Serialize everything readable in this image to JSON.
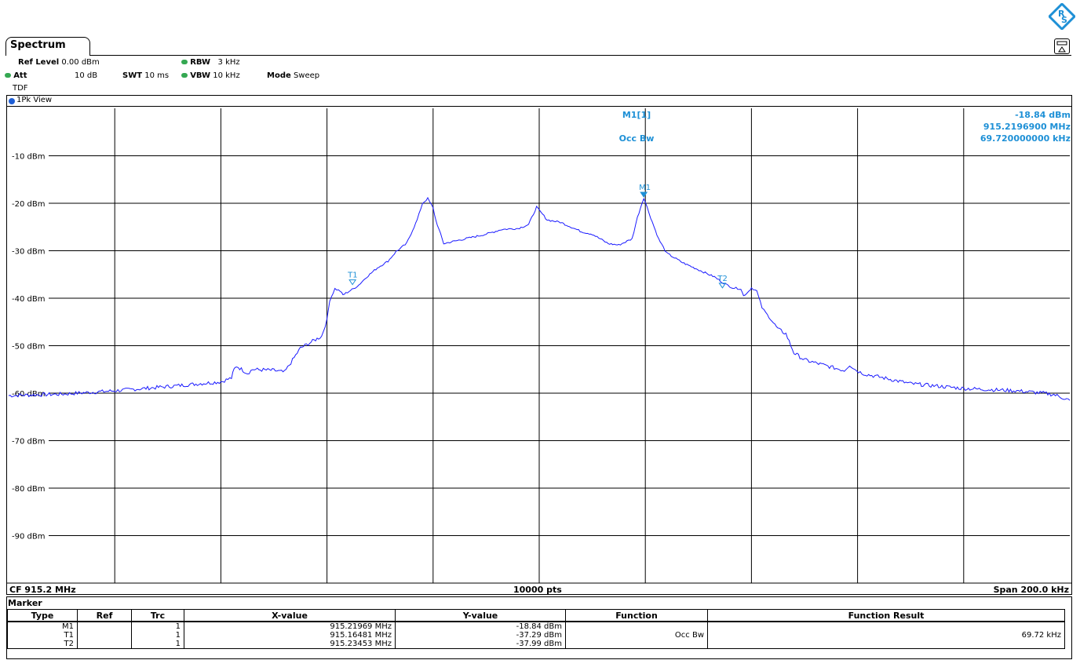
{
  "window": {
    "tab_title": "Spectrum"
  },
  "settings": {
    "ref_level_label": "Ref Level",
    "ref_level_value": "0.00 dBm",
    "att_label": "Att",
    "att_value": "10 dB",
    "swt_label": "SWT",
    "swt_value": "10 ms",
    "rbw_label": "RBW",
    "rbw_value": "3 kHz",
    "vbw_label": "VBW",
    "vbw_value": "10 kHz",
    "mode_label": "Mode",
    "mode_value": "Sweep",
    "tdf": "TDF"
  },
  "view": {
    "title": "1Pk View",
    "marker_readout": {
      "label": "M1[1]",
      "level": "-18.84 dBm",
      "frequency": "915.2196900 MHz",
      "occbw_label": "Occ Bw",
      "occbw_value": "69.720000000 kHz"
    },
    "footer": {
      "cf": "CF 915.2 MHz",
      "pts": "10000 pts",
      "span": "Span 200.0 kHz"
    }
  },
  "colors": {
    "trace": "#1a1aff",
    "marker": "#1e90d6",
    "grid": "#000000",
    "accent": "#35a852"
  },
  "chart_data": {
    "type": "line",
    "x_unit": "MHz",
    "xlim": [
      915.1,
      915.3
    ],
    "ylim": [
      -100,
      0
    ],
    "ytick_labels": [
      "-10 dBm",
      "-20 dBm",
      "-30 dBm",
      "-40 dBm",
      "-50 dBm",
      "-60 dBm",
      "-70 dBm",
      "-80 dBm",
      "-90 dBm"
    ],
    "grid": true,
    "series": [
      {
        "x": [
          915.1,
          915.11,
          915.12,
          915.13,
          915.14,
          915.141,
          915.142,
          915.1425,
          915.143,
          915.145,
          915.146,
          915.15,
          915.152,
          915.155,
          915.159,
          915.16,
          915.1605,
          915.1615,
          915.1625,
          915.163,
          915.165,
          915.166,
          915.1675,
          915.1695,
          915.1715,
          915.173,
          915.175,
          915.177,
          915.178,
          915.179,
          915.18,
          915.1805,
          915.182,
          915.184,
          915.186,
          915.19,
          915.193,
          915.196,
          915.198,
          915.1995,
          915.2,
          915.2015,
          915.204,
          915.208,
          915.21,
          915.213,
          915.215,
          915.2175,
          915.2185,
          915.2197,
          915.221,
          915.2225,
          915.224,
          915.227,
          915.231,
          915.233,
          915.235,
          915.2365,
          915.238,
          915.2385,
          915.2395,
          915.24,
          915.241,
          915.242,
          915.243,
          915.245,
          915.2465,
          915.248,
          915.25,
          915.255,
          915.2575,
          915.2585,
          915.2595,
          915.2605,
          915.2615,
          915.265,
          915.27,
          915.28,
          915.29,
          915.295,
          915.297,
          915.3
        ],
        "y": [
          -60.5,
          -60.2,
          -59.5,
          -58.6,
          -57.6,
          -57.2,
          -56.8,
          -55.0,
          -54.3,
          -55.8,
          -55.0,
          -55.2,
          -55.6,
          -50.5,
          -48.0,
          -44.5,
          -40.5,
          -38.0,
          -38.5,
          -39.3,
          -38.0,
          -37.2,
          -35.5,
          -33.6,
          -32.2,
          -30.2,
          -28.5,
          -23.5,
          -20.0,
          -19.0,
          -21.0,
          -23.5,
          -28.5,
          -28.0,
          -27.5,
          -26.5,
          -25.5,
          -25.3,
          -24.5,
          -20.8,
          -21.5,
          -23.5,
          -24.0,
          -26.0,
          -26.5,
          -28.5,
          -28.8,
          -27.5,
          -23.0,
          -18.84,
          -23.0,
          -27.5,
          -30.5,
          -32.5,
          -34.5,
          -35.5,
          -37.0,
          -37.8,
          -38.0,
          -39.5,
          -38.5,
          -37.8,
          -38.5,
          -42.0,
          -43.5,
          -46.5,
          -47.5,
          -51.5,
          -53.0,
          -54.5,
          -55.2,
          -54.0,
          -55.0,
          -55.6,
          -56.0,
          -56.8,
          -58.0,
          -59.0,
          -59.5,
          -60.0,
          -60.3,
          -61.5
        ]
      }
    ]
  },
  "markers": [
    {
      "name": "M1",
      "x": 915.2197,
      "y": -18.84
    },
    {
      "name": "T1",
      "x": 915.16481,
      "y": -37.29
    },
    {
      "name": "T2",
      "x": 915.23453,
      "y": -37.99
    }
  ],
  "marker_table": {
    "title": "Marker",
    "headers": [
      "Type",
      "Ref",
      "Trc",
      "X-value",
      "Y-value",
      "Function",
      "Function Result"
    ],
    "rows": [
      [
        "M1",
        "",
        "1",
        "915.21969 MHz",
        "-18.84 dBm",
        "",
        ""
      ],
      [
        "T1",
        "",
        "1",
        "915.16481 MHz",
        "-37.29 dBm",
        "Occ Bw",
        "69.72 kHz"
      ],
      [
        "T2",
        "",
        "1",
        "915.23453 MHz",
        "-37.99 dBm",
        "",
        ""
      ]
    ]
  }
}
